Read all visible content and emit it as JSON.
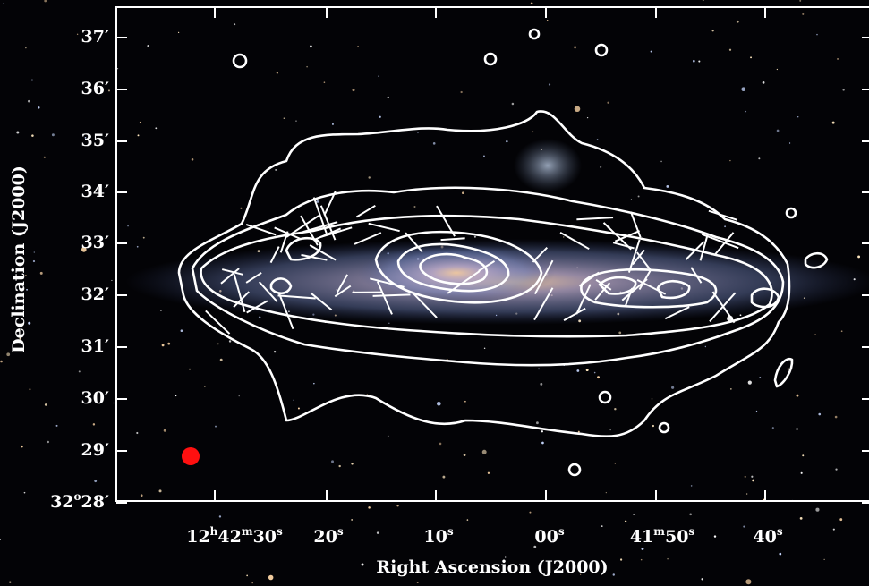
{
  "figure": {
    "x_axis_label": "Right Ascension (J2000)",
    "y_axis_label": "Declination (J2000)",
    "x_tick_labels": [
      [
        "12",
        "h",
        "42",
        "m",
        "30",
        "s"
      ],
      [
        "20",
        "s"
      ],
      [
        "10",
        "s"
      ],
      [
        "00",
        "s"
      ],
      [
        "41",
        "m",
        "50",
        "s"
      ],
      [
        "40",
        "s"
      ]
    ],
    "y_tick_labels": [
      [
        "37′"
      ],
      [
        "36′"
      ],
      [
        "35′"
      ],
      [
        "34′"
      ],
      [
        "33′"
      ],
      [
        "32′"
      ],
      [
        "31′"
      ],
      [
        "30′"
      ],
      [
        "29′"
      ],
      [
        "32",
        "o",
        "28′"
      ]
    ]
  }
}
